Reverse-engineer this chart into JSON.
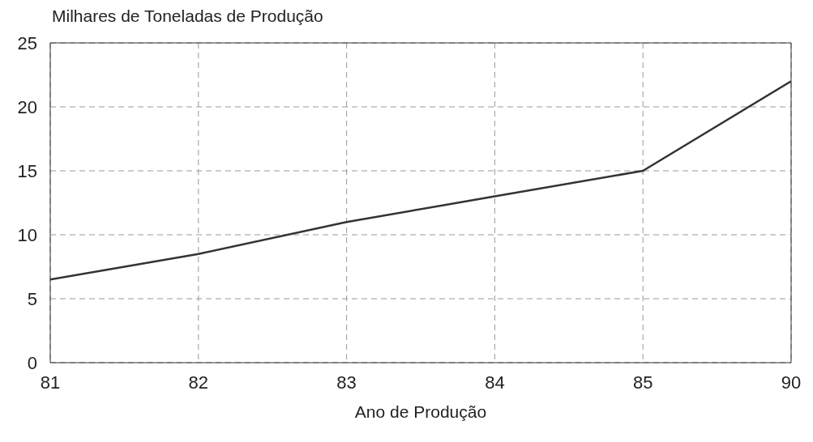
{
  "chart_data": {
    "type": "line",
    "ylabel": "Milhares de Toneladas de Produção",
    "xlabel": "Ano de Produção",
    "categories": [
      "81",
      "82",
      "83",
      "84",
      "85",
      "90"
    ],
    "series": [
      {
        "color": "#333333",
        "values": [
          6.5,
          8.5,
          11,
          13,
          15,
          22
        ]
      }
    ],
    "ylim": [
      0,
      25
    ],
    "yticks": [
      0,
      5,
      10,
      15,
      20,
      25
    ],
    "grid": true,
    "marker": "none",
    "line_style": "solid"
  }
}
